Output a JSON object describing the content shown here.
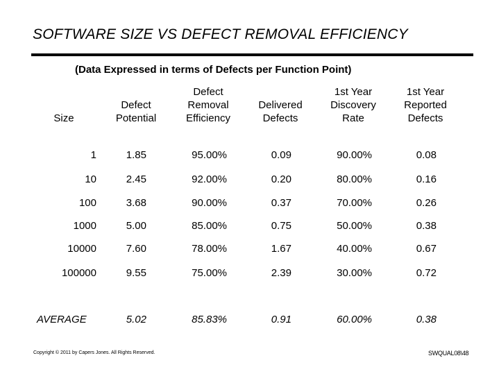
{
  "title": "SOFTWARE SIZE VS DEFECT REMOVAL EFFICIENCY",
  "subtitle": "(Data Expressed in terms of Defects per Function Point)",
  "headers": [
    "Size",
    "Defect\nPotential",
    "Defect\nRemoval\nEfficiency",
    "Delivered\nDefects",
    "1st Year\nDiscovery\nRate",
    "1st Year\nReported\nDefects"
  ],
  "rows": [
    [
      "1",
      "1.85",
      "95.00%",
      "0.09",
      "90.00%",
      "0.08"
    ],
    [
      "10",
      "2.45",
      "92.00%",
      "0.20",
      "80.00%",
      "0.16"
    ],
    [
      "100",
      "3.68",
      "90.00%",
      "0.37",
      "70.00%",
      "0.26"
    ],
    [
      "1000",
      "5.00",
      "85.00%",
      "0.75",
      "50.00%",
      "0.38"
    ],
    [
      "10000",
      "7.60",
      "78.00%",
      "1.67",
      "40.00%",
      "0.67"
    ],
    [
      "100000",
      "9.55",
      "75.00%",
      "2.39",
      "30.00%",
      "0.72"
    ]
  ],
  "average": [
    "AVERAGE",
    "5.02",
    "85.83%",
    "0.91",
    "60.00%",
    "0.38"
  ],
  "footer": {
    "copyright": "Copyright © 2011 by Capers Jones. All Rights Reserved.",
    "slide_id": "SWQUAL08\\48"
  }
}
